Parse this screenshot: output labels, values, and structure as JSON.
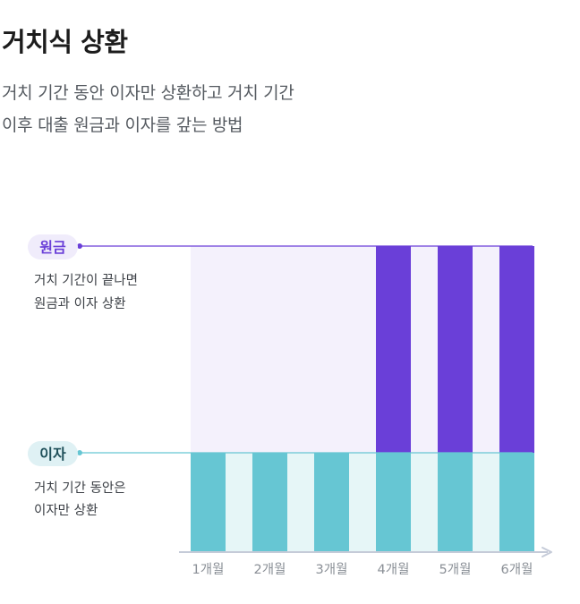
{
  "header": {
    "title": "거치식 상환",
    "description": [
      "거치 기간 동안 이자만 상환하고 거치 기간",
      "이후 대출 원금과 이자를 갚는 방법"
    ]
  },
  "chart_data": {
    "type": "bar",
    "categories": [
      "1개월",
      "2개월",
      "3개월",
      "4개월",
      "5개월",
      "6개월"
    ],
    "series": [
      {
        "name": "이자",
        "color": "#66c6d3",
        "values": [
          1,
          1,
          1,
          1,
          1,
          1
        ]
      },
      {
        "name": "원금",
        "color": "#6a3fd8",
        "values": [
          0,
          0,
          0,
          1,
          1,
          1
        ]
      }
    ],
    "labels": [
      {
        "tag": "원금",
        "tag_color": "#6a3fd8",
        "tag_bg": "#f0ecfb",
        "note": [
          "거치 기간이 끝나면",
          "원금과 이자 상환"
        ]
      },
      {
        "tag": "이자",
        "tag_color": "#1e4f59",
        "tag_bg": "#dff1f4",
        "note": [
          "거치 기간 동안은",
          "이자만 상환"
        ]
      }
    ],
    "colors": {
      "principal_bg": "#f4f1fc",
      "interest_bg": "#e6f6f7",
      "axis": "#c5cbd8"
    },
    "xlabel": "",
    "ylabel": ""
  }
}
